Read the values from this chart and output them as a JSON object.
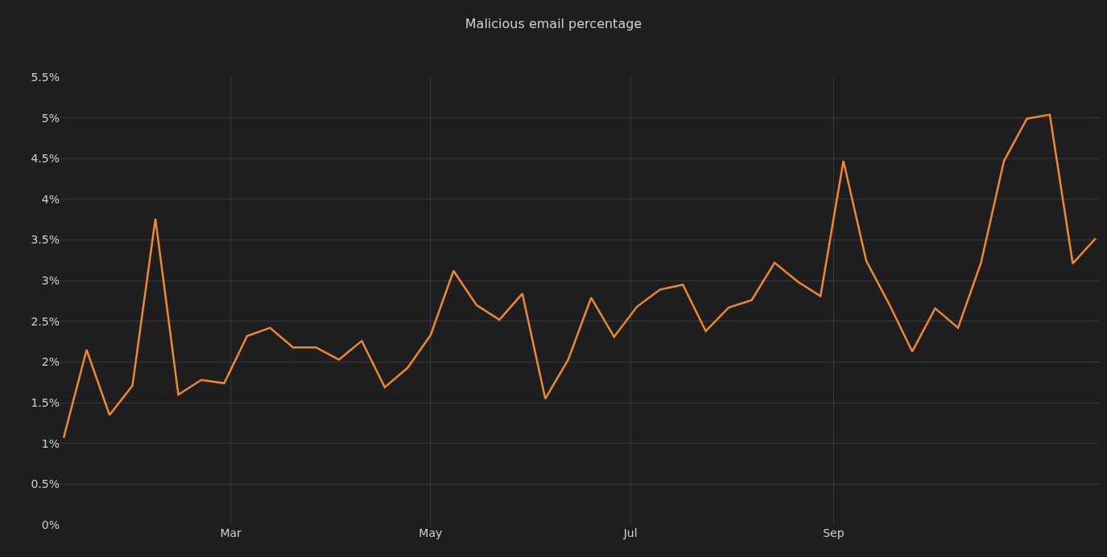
{
  "chart_data": {
    "type": "line",
    "title": "Malicious email percentage",
    "x": [
      "--01-09",
      "--01-16",
      "--01-23",
      "--01-30",
      "--02-06",
      "--02-13",
      "--02-20",
      "--02-27",
      "--03-06",
      "--03-13",
      "--03-20",
      "--03-27",
      "--04-03",
      "--04-10",
      "--04-17",
      "--04-24",
      "--05-01",
      "--05-08",
      "--05-15",
      "--05-22",
      "--05-29",
      "--06-05",
      "--06-12",
      "--06-19",
      "--06-26",
      "--07-03",
      "--07-10",
      "--07-17",
      "--07-24",
      "--07-31",
      "--08-07",
      "--08-14",
      "--08-21",
      "--08-28",
      "--09-04",
      "--09-11",
      "--09-18",
      "--09-25",
      "--10-02",
      "--10-09",
      "--10-16",
      "--10-23",
      "--10-30",
      "--11-06",
      "--11-13",
      "--11-20"
    ],
    "series": [
      {
        "color": "#f0892a",
        "values": [
          1.07,
          2.15,
          1.35,
          1.71,
          3.76,
          1.6,
          1.78,
          1.74,
          2.32,
          2.42,
          2.18,
          2.18,
          2.03,
          2.26,
          1.69,
          1.93,
          2.33,
          3.12,
          2.7,
          2.52,
          2.84,
          1.55,
          2.03,
          2.79,
          2.31,
          2.68,
          2.89,
          2.95,
          2.38,
          2.67,
          2.76,
          3.22,
          2.99,
          2.81,
          4.47,
          3.24,
          2.71,
          2.13,
          2.66,
          2.42,
          3.22,
          4.47,
          4.99,
          5.04,
          3.21,
          3.52
        ]
      }
    ],
    "xlim": [
      "--01-08",
      "--11-21"
    ],
    "xticks": [
      {
        "value": "--03-01",
        "label": "Mar"
      },
      {
        "value": "--05-01",
        "label": "May"
      },
      {
        "value": "--07-01",
        "label": "Jul"
      },
      {
        "value": "--09-01",
        "label": "Sep"
      }
    ],
    "ylim": [
      0,
      5.5
    ],
    "yticks": [
      {
        "value": 0,
        "label": "0%"
      },
      {
        "value": 0.5,
        "label": "0.5%"
      },
      {
        "value": 1,
        "label": "1%"
      },
      {
        "value": 1.5,
        "label": "1.5%"
      },
      {
        "value": 2,
        "label": "2%"
      },
      {
        "value": 2.5,
        "label": "2.5%"
      },
      {
        "value": 3,
        "label": "3%"
      },
      {
        "value": 3.5,
        "label": "3.5%"
      },
      {
        "value": 4,
        "label": "4%"
      },
      {
        "value": 4.5,
        "label": "4.5%"
      },
      {
        "value": 5,
        "label": "5%"
      },
      {
        "value": 5.5,
        "label": "5.5%"
      }
    ],
    "grid": true
  }
}
